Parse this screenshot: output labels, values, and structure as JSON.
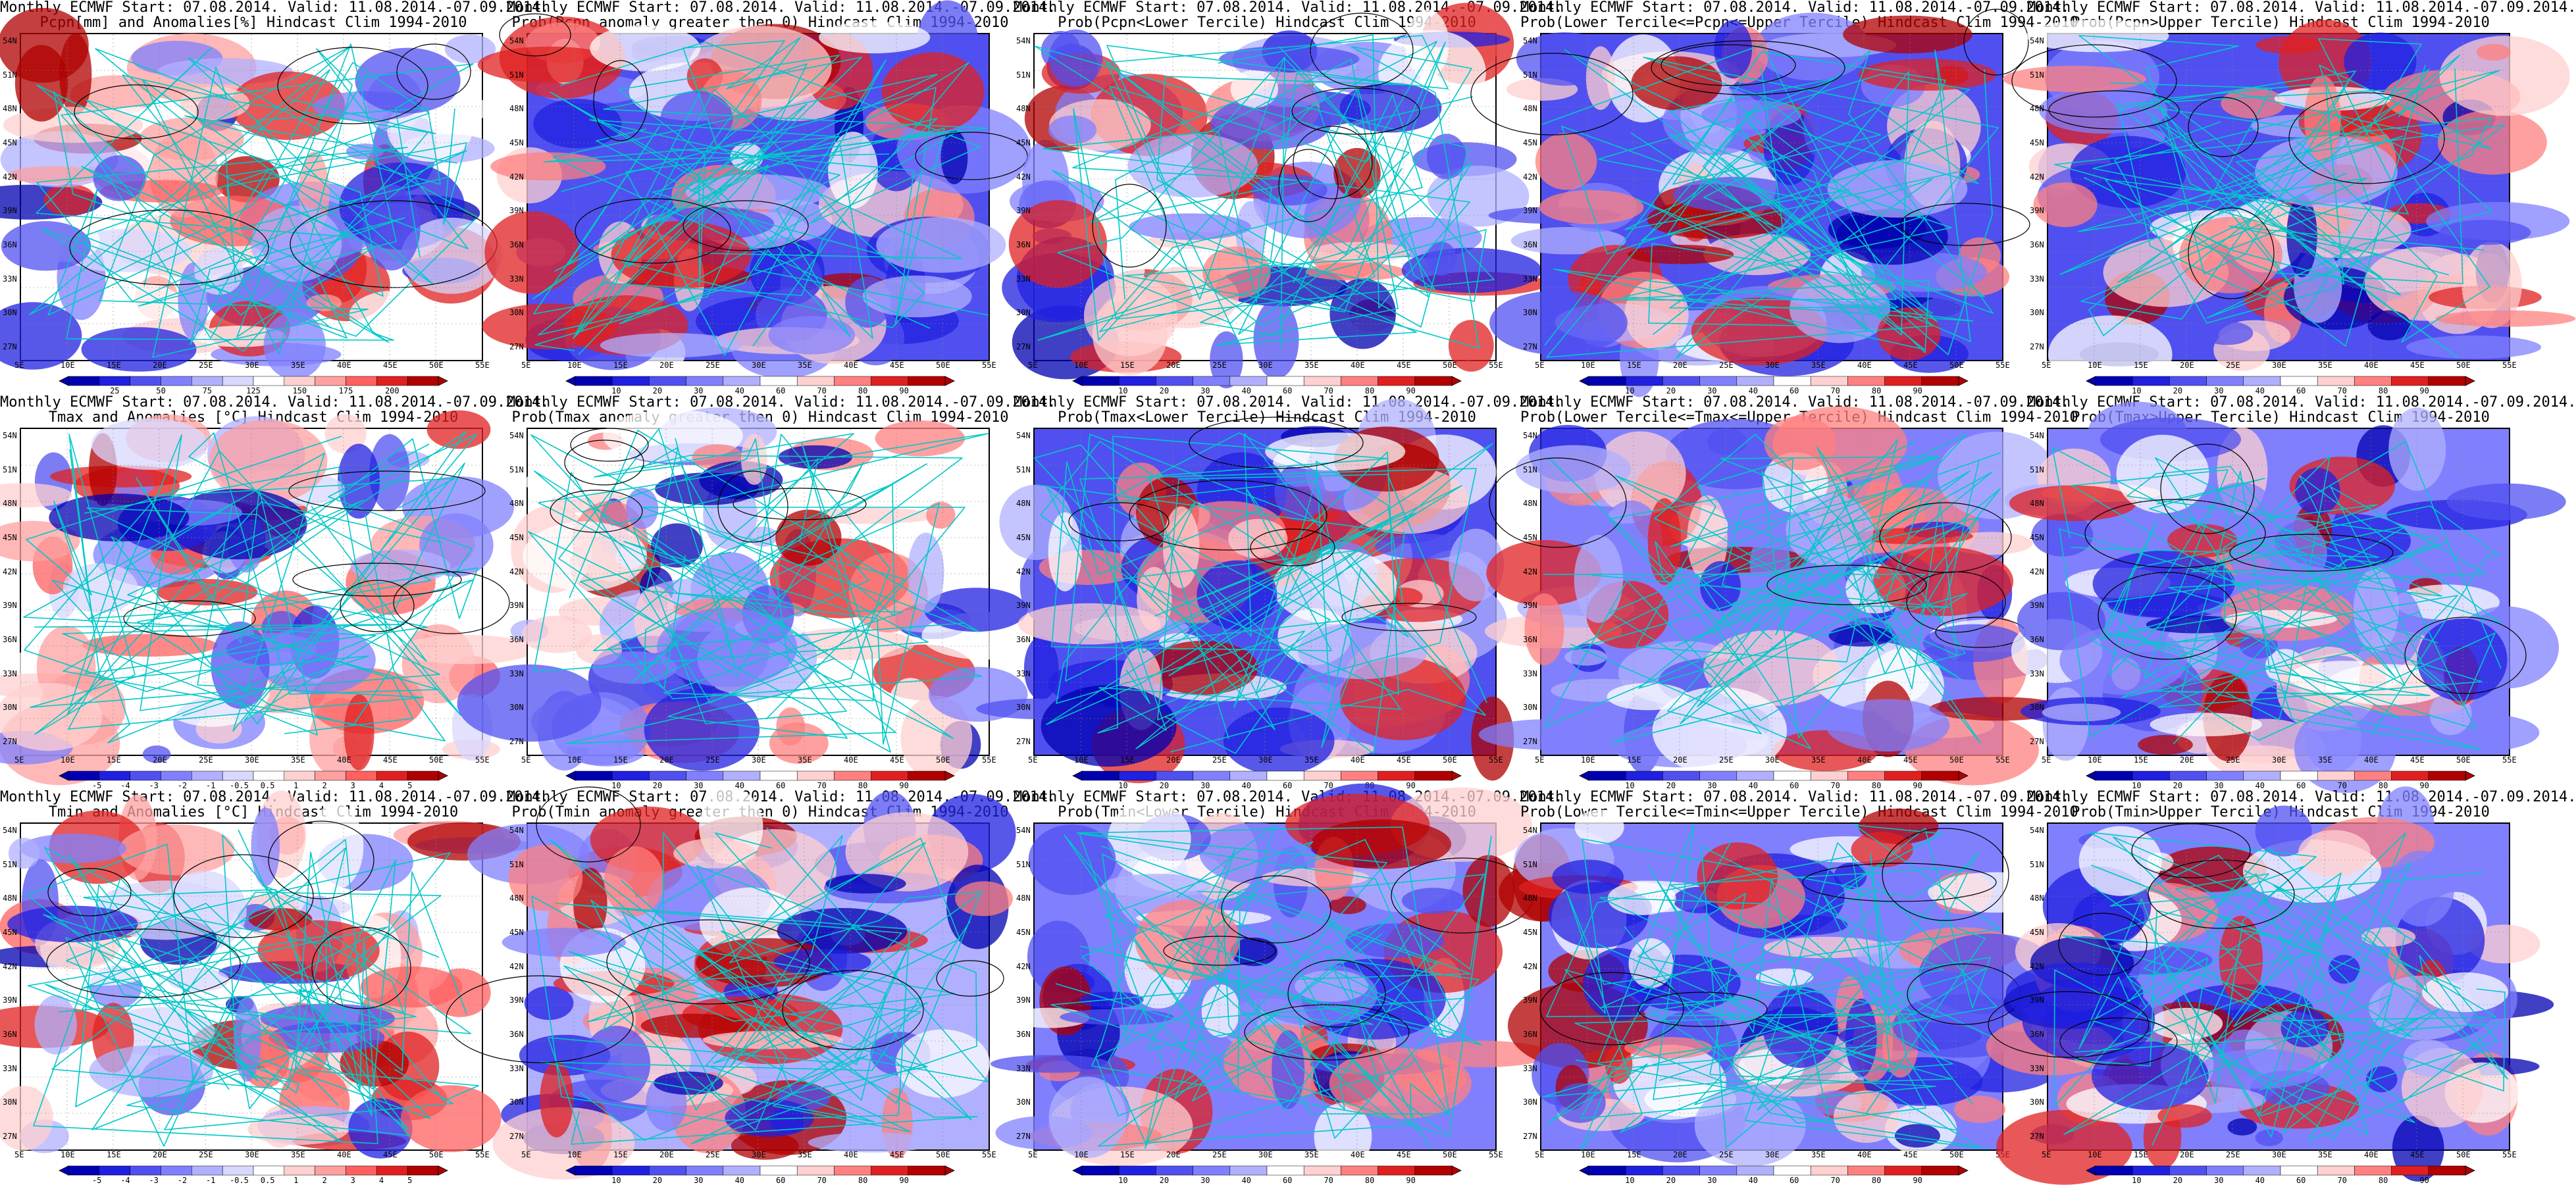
{
  "colors": {
    "anomaly_pcpn": [
      "#0000b0",
      "#2020e0",
      "#5050f0",
      "#8080ff",
      "#b0b0ff",
      "#d8d8ff",
      "#ffffff",
      "#ffd0d0",
      "#ffa0a0",
      "#ff6060",
      "#e02020",
      "#b00000"
    ],
    "anomaly_temp": [
      "#0000b0",
      "#2020e0",
      "#5050f0",
      "#8080ff",
      "#b0b0ff",
      "#d8d8ff",
      "#ffffff",
      "#ffd0d0",
      "#ffa0a0",
      "#ff6060",
      "#e02020",
      "#b00000"
    ],
    "probability": [
      "#0000b0",
      "#2020e0",
      "#5050f0",
      "#8080ff",
      "#b0b0ff",
      "#ffffff",
      "#ffd0d0",
      "#ff8080",
      "#e02020",
      "#b00000"
    ],
    "coast": "#00c8c8",
    "contour": "#000000"
  },
  "map_axes": {
    "lon_labels": [
      "5E",
      "10E",
      "15E",
      "20E",
      "25E",
      "30E",
      "35E",
      "40E",
      "45E",
      "50E",
      "55E"
    ],
    "lat_labels": [
      "54N",
      "51N",
      "48N",
      "45N",
      "42N",
      "39N",
      "36N",
      "33N",
      "30N",
      "27N"
    ]
  },
  "colorbars": {
    "pcpn_anom": [
      "25",
      "50",
      "75",
      "125",
      "150",
      "175",
      "200"
    ],
    "temp_anom": [
      "-5",
      "-4",
      "-3",
      "-2",
      "-1",
      "-0.5",
      "0.5",
      "1",
      "2",
      "3",
      "4",
      "5"
    ],
    "prob": [
      "10",
      "20",
      "30",
      "40",
      "60",
      "70",
      "80",
      "90"
    ]
  },
  "panels": [
    {
      "row": 0,
      "col": 0,
      "title1": "Monthly ECMWF Start: 07.08.2014. Valid: 11.08.2014.-07.09.2014.",
      "title2": "Pcpn[mm] and Anomalies[%] Hindcast Clim 1994-2010",
      "cbar": "pcpn_anom",
      "scheme": "anomaly_pcpn",
      "dominant": 0.5,
      "map_seed": 1
    },
    {
      "row": 0,
      "col": 1,
      "title1": "Monthly ECMWF Start: 07.08.2014. Valid: 11.08.2014.-07.09.2014.",
      "title2": "Prob(Pcpn anomaly greater then 0) Hindcast Clim 1994-2010",
      "cbar": "prob",
      "scheme": "probability",
      "dominant": 0.2,
      "map_seed": 2
    },
    {
      "row": 0,
      "col": 2,
      "title1": "Monthly ECMWF Start: 07.08.2014. Valid: 11.08.2014.-07.09.2014.",
      "title2": "Prob(Pcpn<Lower Tercile) Hindcast Clim 1994-2010",
      "cbar": "prob",
      "scheme": "probability",
      "dominant": 0.55,
      "map_seed": 3
    },
    {
      "row": 0,
      "col": 3,
      "title1": "Monthly ECMWF Start: 07.08.2014. Valid: 11.08.2014.-07.09.2014.",
      "title2": "Prob(Lower Tercile<=Pcpn<=Upper Tercile) Hindcast Clim 1994-2010",
      "cbar": "prob",
      "scheme": "probability",
      "dominant": 0.2,
      "map_seed": 4
    },
    {
      "row": 0,
      "col": 4,
      "title1": "Monthly ECMWF Start: 07.08.2014. Valid: 11.08.2014.-07.09.2014.",
      "title2": "Prob(Pcpn>Upper Tercile) Hindcast Clim 1994-2010",
      "cbar": "prob",
      "scheme": "probability",
      "dominant": 0.2,
      "map_seed": 5
    },
    {
      "row": 1,
      "col": 0,
      "title1": "Monthly ECMWF Start: 07.08.2014. Valid: 11.08.2014.-07.09.2014.",
      "title2": "Tmax and Anomalies [°C] Hindcast Clim 1994-2010",
      "cbar": "temp_anom",
      "scheme": "anomaly_temp",
      "dominant": 0.55,
      "map_seed": 6
    },
    {
      "row": 1,
      "col": 1,
      "title1": "Monthly ECMWF Start: 07.08.2014. Valid: 11.08.2014.-07.09.2014.",
      "title2": "Prob(Tmax anomaly greater then 0) Hindcast Clim 1994-2010",
      "cbar": "prob",
      "scheme": "probability",
      "dominant": 0.5,
      "map_seed": 7
    },
    {
      "row": 1,
      "col": 2,
      "title1": "Monthly ECMWF Start: 07.08.2014. Valid: 11.08.2014.-07.09.2014.",
      "title2": "Prob(Tmax<Lower Tercile) Hindcast Clim 1994-2010",
      "cbar": "prob",
      "scheme": "probability",
      "dominant": 0.25,
      "map_seed": 8
    },
    {
      "row": 1,
      "col": 3,
      "title1": "Monthly ECMWF Start: 07.08.2014. Valid: 11.08.2014.-07.09.2014.",
      "title2": "Prob(Lower Tercile<=Tmax<=Upper Tercile) Hindcast Clim 1994-2010",
      "cbar": "prob",
      "scheme": "probability",
      "dominant": 0.35,
      "map_seed": 9
    },
    {
      "row": 1,
      "col": 4,
      "title1": "Monthly ECMWF Start: 07.08.2014. Valid: 11.08.2014.-07.09.2014.",
      "title2": "Prob(Tmax>Upper Tercile) Hindcast Clim 1994-2010",
      "cbar": "prob",
      "scheme": "probability",
      "dominant": 0.3,
      "map_seed": 10
    },
    {
      "row": 2,
      "col": 0,
      "title1": "Monthly ECMWF Start: 07.08.2014. Valid: 11.08.2014.-07.09.2014.",
      "title2": "Tmin and Anomalies [°C] Hindcast Clim 1994-2010",
      "cbar": "temp_anom",
      "scheme": "anomaly_temp",
      "dominant": 0.56,
      "map_seed": 11
    },
    {
      "row": 2,
      "col": 1,
      "title1": "Monthly ECMWF Start: 07.08.2014. Valid: 11.08.2014.-07.09.2014.",
      "title2": "Prob(Tmin anomaly greater then 0) Hindcast Clim 1994-2010",
      "cbar": "prob",
      "scheme": "probability",
      "dominant": 0.45,
      "map_seed": 12
    },
    {
      "row": 2,
      "col": 2,
      "title1": "Monthly ECMWF Start: 07.08.2014. Valid: 11.08.2014.-07.09.2014.",
      "title2": "Prob(Tmin<Lower Tercile) Hindcast Clim 1994-2010",
      "cbar": "prob",
      "scheme": "probability",
      "dominant": 0.3,
      "map_seed": 13
    },
    {
      "row": 2,
      "col": 3,
      "title1": "Monthly ECMWF Start: 07.08.2014. Valid: 11.08.2014.-07.09.2014.",
      "title2": "Prob(Lower Tercile<=Tmin<=Upper Tercile) Hindcast Clim 1994-2010",
      "cbar": "prob",
      "scheme": "probability",
      "dominant": 0.35,
      "map_seed": 14
    },
    {
      "row": 2,
      "col": 4,
      "title1": "Monthly ECMWF Start: 07.08.2014. Valid: 11.08.2014.-07.09.2014.",
      "title2": "Prob(Tmin>Upper Tercile) Hindcast Clim 1994-2010",
      "cbar": "prob",
      "scheme": "probability",
      "dominant": 0.3,
      "map_seed": 15
    }
  ]
}
